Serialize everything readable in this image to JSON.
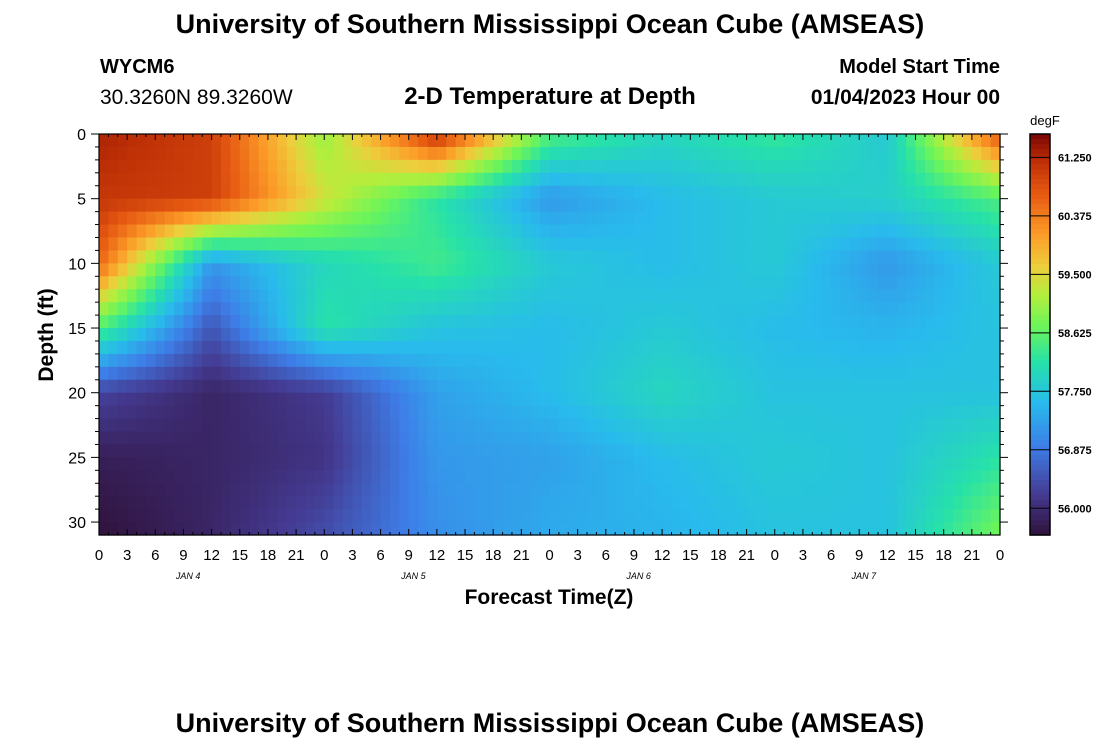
{
  "header": {
    "title": "University of Southern Mississippi Ocean Cube (AMSEAS)",
    "station_id": "WYCM6",
    "station_coords": "30.3260N  89.3260W",
    "subtitle": "2-D Temperature at Depth",
    "start_label": "Model Start Time",
    "start_value": "01/04/2023 Hour 00"
  },
  "footer": {
    "title": "University of Southern Mississippi Ocean Cube (AMSEAS)"
  },
  "chart_data": {
    "type": "heatmap",
    "title": "2-D Temperature at Depth",
    "xlabel": "Forecast Time(Z)",
    "ylabel": "Depth (ft)",
    "x_tick_labels": [
      "0",
      "3",
      "6",
      "9",
      "12",
      "15",
      "18",
      "21",
      "0",
      "3",
      "6",
      "9",
      "12",
      "15",
      "18",
      "21",
      "0",
      "3",
      "6",
      "9",
      "12",
      "15",
      "18",
      "21",
      "0",
      "3",
      "6",
      "9",
      "12",
      "15",
      "18",
      "21",
      "0"
    ],
    "x_day_labels": [
      "JAN 4",
      "JAN 5",
      "JAN 6",
      "JAN 7"
    ],
    "y_ticks": [
      0,
      5,
      10,
      15,
      20,
      25,
      30
    ],
    "ylim": [
      0,
      31
    ],
    "x_range_hours": [
      0,
      96
    ],
    "colorbar": {
      "unit": "degF",
      "min": 55.6,
      "max": 61.6,
      "tick_values": [
        61.25,
        60.375,
        59.5,
        58.625,
        57.75,
        56.875,
        56.0
      ],
      "tick_labels": [
        "61.250",
        "60.375",
        "59.500",
        "58.625",
        "57.750",
        "56.875",
        "56.000"
      ]
    },
    "times_hours": [
      0,
      12,
      24,
      36,
      48,
      60,
      72,
      84,
      96
    ],
    "depths_ft": [
      0,
      5,
      10,
      15,
      20,
      25,
      31
    ],
    "values_degF": [
      [
        61.3,
        61.0,
        59.0,
        61.2,
        58.5,
        58.0,
        58.3,
        57.8,
        60.8
      ],
      [
        61.1,
        61.0,
        59.4,
        58.2,
        57.2,
        57.6,
        57.8,
        57.9,
        58.5
      ],
      [
        60.6,
        57.2,
        58.0,
        58.4,
        57.8,
        57.6,
        57.8,
        57.2,
        57.8
      ],
      [
        58.5,
        56.5,
        58.2,
        57.7,
        57.6,
        57.8,
        57.6,
        57.5,
        57.7
      ],
      [
        56.3,
        55.9,
        56.2,
        57.3,
        57.6,
        58.0,
        57.7,
        57.7,
        57.7
      ],
      [
        55.8,
        55.9,
        56.1,
        57.2,
        57.3,
        57.6,
        57.8,
        57.7,
        58.2
      ],
      [
        55.6,
        55.9,
        56.4,
        57.1,
        57.4,
        57.5,
        57.7,
        57.7,
        58.8
      ]
    ]
  }
}
